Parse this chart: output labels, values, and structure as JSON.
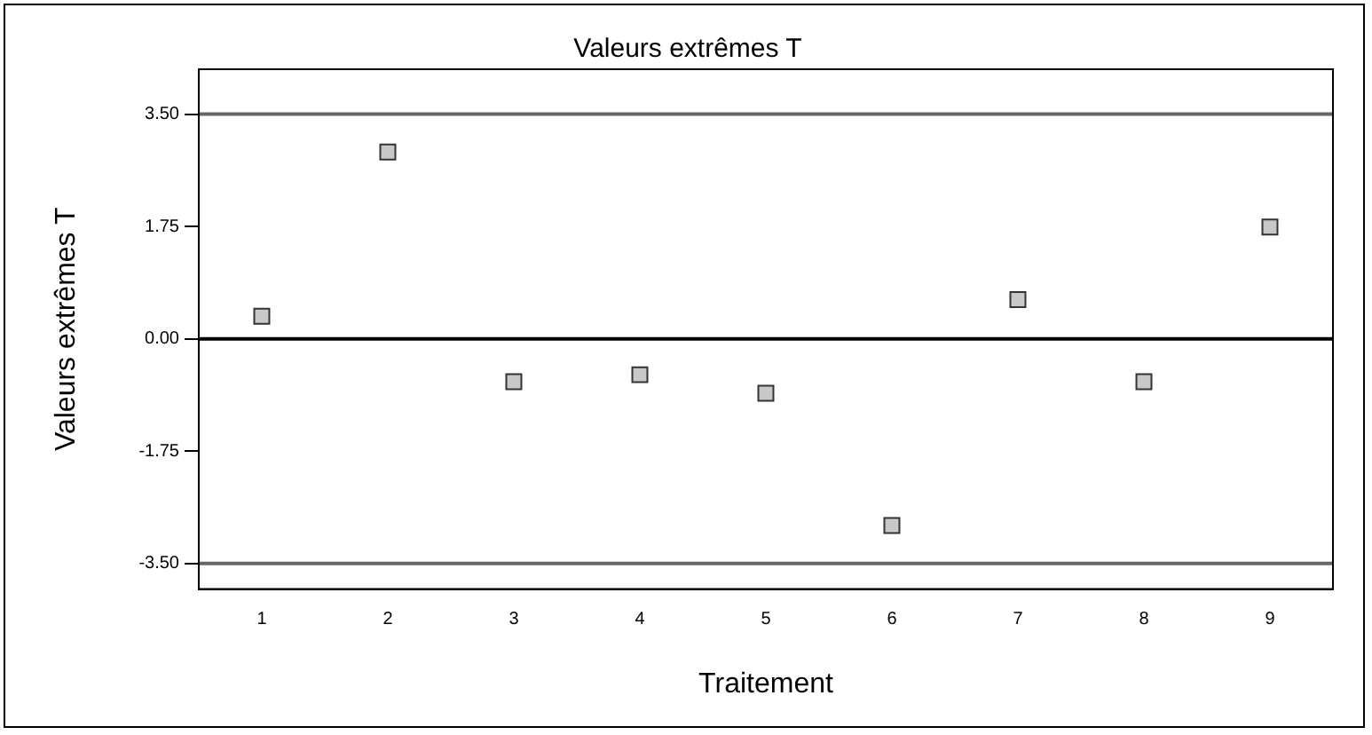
{
  "chart_data": {
    "type": "scatter",
    "title": "Valeurs extrêmes T",
    "xlabel": "Traitement",
    "ylabel": "Valeurs extrêmes T",
    "categories": [
      "1",
      "2",
      "3",
      "4",
      "5",
      "6",
      "7",
      "8",
      "9"
    ],
    "series": [
      {
        "color": "#c8c8c8",
        "values": [
          0.35,
          2.91,
          -0.67,
          -0.56,
          -0.85,
          -2.91,
          0.61,
          -0.67,
          1.74
        ]
      }
    ],
    "ylim": [
      -3.9,
      4.2
    ],
    "yticks": [
      {
        "value": 3.5,
        "label": "3.50"
      },
      {
        "value": 1.75,
        "label": "1.75"
      },
      {
        "value": 0,
        "label": "0.00"
      },
      {
        "value": -1.75,
        "label": "-1.75"
      },
      {
        "value": -3.5,
        "label": "-3.50"
      }
    ],
    "ref_lines": [
      {
        "axis": "y",
        "value": 3.5,
        "color": "#666666"
      },
      {
        "axis": "y",
        "value": 0,
        "color": "#000000"
      },
      {
        "axis": "y",
        "value": -3.5,
        "color": "#666666"
      }
    ],
    "marker": "square",
    "grid": false,
    "legend": false
  }
}
